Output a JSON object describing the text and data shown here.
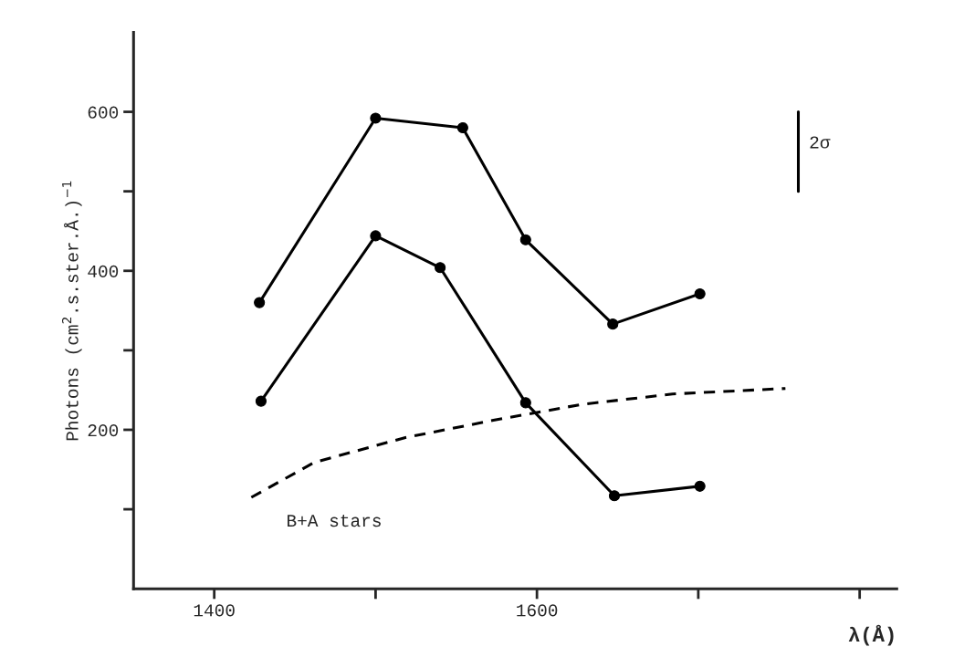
{
  "chart_data": {
    "type": "line",
    "xlabel": "λ(Å)",
    "ylabel": "Photons (cm$^{2}$.s.ster.Å.)$^{−1}$",
    "xlim": [
      1350,
      1823
    ],
    "ylim": [
      0,
      700
    ],
    "xticks": [
      1400,
      {
        "value": 1500,
        "label": null
      },
      1600,
      {
        "value": 1700,
        "label": null
      },
      {
        "value": 1800,
        "label": null
      }
    ],
    "yticks": [
      {
        "value": 100,
        "label": null
      },
      200,
      {
        "value": 300,
        "label": null
      },
      400,
      {
        "value": 500,
        "label": null
      },
      600
    ],
    "grid": false,
    "legend": false,
    "series": [
      {
        "color": "#000000",
        "marker": "circle",
        "line_style": "solid",
        "x": [
          1428,
          1500,
          1554,
          1593,
          1647,
          1701
        ],
        "values": [
          360,
          592,
          580,
          439,
          333,
          371
        ]
      },
      {
        "color": "#000000",
        "marker": "circle",
        "line_style": "solid",
        "x": [
          1429,
          1500,
          1540,
          1593,
          1648,
          1701
        ],
        "values": [
          236,
          444,
          404,
          234,
          117,
          129
        ]
      },
      {
        "color": "#000000",
        "marker": "none",
        "line_style": "dashed",
        "x": [
          1423,
          1462,
          1518,
          1573,
          1628,
          1684,
          1754
        ],
        "values": [
          115,
          159,
          190,
          212,
          232,
          245,
          252
        ]
      },
      {
        "color": "#000000",
        "marker": "none",
        "line_style": "solid",
        "x": [
          1762,
          1762
        ],
        "values": [
          500,
          600
        ]
      }
    ],
    "annotations": [
      "B+A stars",
      "2σ"
    ]
  }
}
